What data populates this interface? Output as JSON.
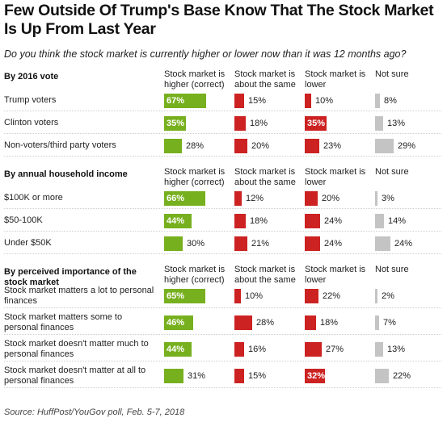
{
  "title": "Few Outside Of Trump's Base Know That The Stock Market Is Up From Last Year",
  "subtitle": "Do you think the stock market is currently higher or lower now than it was 12 months ago?",
  "source": "Source: HuffPost/YouGov poll, Feb. 5-7, 2018",
  "colors": {
    "higher": "#77b01e",
    "same": "#cc2222",
    "lower": "#cc2222",
    "not_sure": "#c4c4c4"
  },
  "chart_data": {
    "type": "bar",
    "title": "Few Outside Of Trump's Base Know That The Stock Market Is Up From Last Year",
    "columns": [
      "Stock market is higher (correct)",
      "Stock market is about the same",
      "Stock market is lower",
      "Not sure"
    ],
    "unit": "%",
    "groups": [
      {
        "title": "By 2016 vote",
        "rows": [
          {
            "label": "Trump voters",
            "values": [
              67,
              15,
              10,
              8
            ],
            "highlight": [
              true,
              false,
              false,
              false
            ]
          },
          {
            "label": "Clinton voters",
            "values": [
              35,
              18,
              35,
              13
            ],
            "highlight": [
              true,
              false,
              true,
              false
            ]
          },
          {
            "label": "Non-voters/third party voters",
            "values": [
              28,
              20,
              23,
              29
            ],
            "highlight": [
              false,
              false,
              false,
              false
            ]
          }
        ]
      },
      {
        "title": "By annual household income",
        "rows": [
          {
            "label": "$100K or more",
            "values": [
              66,
              12,
              20,
              3
            ],
            "highlight": [
              true,
              false,
              false,
              false
            ]
          },
          {
            "label": "$50-100K",
            "values": [
              44,
              18,
              24,
              14
            ],
            "highlight": [
              true,
              false,
              false,
              false
            ]
          },
          {
            "label": "Under $50K",
            "values": [
              30,
              21,
              24,
              24
            ],
            "highlight": [
              false,
              false,
              false,
              false
            ]
          }
        ]
      },
      {
        "title": "By perceived importance of the stock market",
        "rows": [
          {
            "label": "Stock market matters a lot to personal finances",
            "values": [
              65,
              10,
              22,
              2
            ],
            "highlight": [
              true,
              false,
              false,
              false
            ]
          },
          {
            "label": "Stock market matters some to personal finances",
            "values": [
              46,
              28,
              18,
              7
            ],
            "highlight": [
              true,
              false,
              false,
              false
            ]
          },
          {
            "label": "Stock market doesn't matter much to personal finances",
            "values": [
              44,
              16,
              27,
              13
            ],
            "highlight": [
              true,
              false,
              false,
              false
            ]
          },
          {
            "label": "Stock market doesn't matter at all to personal finances",
            "values": [
              31,
              15,
              32,
              22
            ],
            "highlight": [
              false,
              false,
              true,
              false
            ]
          }
        ]
      }
    ]
  }
}
